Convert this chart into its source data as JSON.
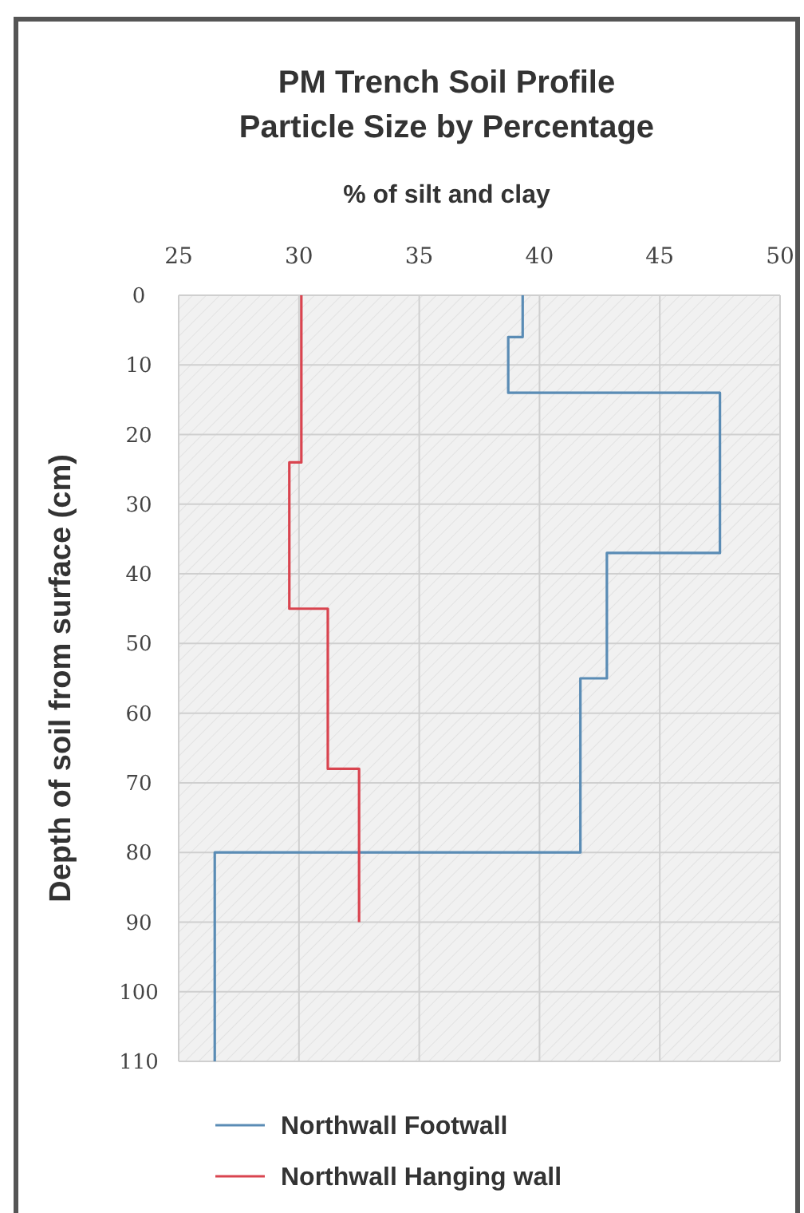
{
  "chart_data": {
    "type": "line",
    "title": "PM Trench Soil Profile\nParticle Size by Percentage",
    "xlabel": "% of silt and clay",
    "ylabel": "Depth of soil from surface (cm)",
    "xlim": [
      25,
      50
    ],
    "xticks": [
      25,
      30,
      35,
      40,
      45,
      50
    ],
    "ylim": [
      110,
      0
    ],
    "yticks": [
      0,
      10,
      20,
      30,
      40,
      50,
      60,
      70,
      80,
      90,
      100,
      110
    ],
    "grid": true,
    "legend": "bottom",
    "marker": "none",
    "line_style": "solid",
    "series": [
      {
        "name": "Northwall Footwall",
        "color": "#5a8cb5",
        "x": [
          39.3,
          39.3,
          38.7,
          38.7,
          47.5,
          47.5,
          42.8,
          42.8,
          41.7,
          41.7,
          26.5,
          26.5
        ],
        "values": [
          0,
          6,
          6,
          14,
          14,
          37,
          37,
          55,
          55,
          80,
          80,
          110
        ]
      },
      {
        "name": "Northwall Hanging wall",
        "color": "#d9444f",
        "x": [
          30.1,
          30.1,
          29.6,
          29.6,
          31.2,
          31.2,
          32.5,
          32.5
        ],
        "values": [
          0,
          24,
          24,
          45,
          45,
          68,
          68,
          90
        ]
      }
    ]
  }
}
